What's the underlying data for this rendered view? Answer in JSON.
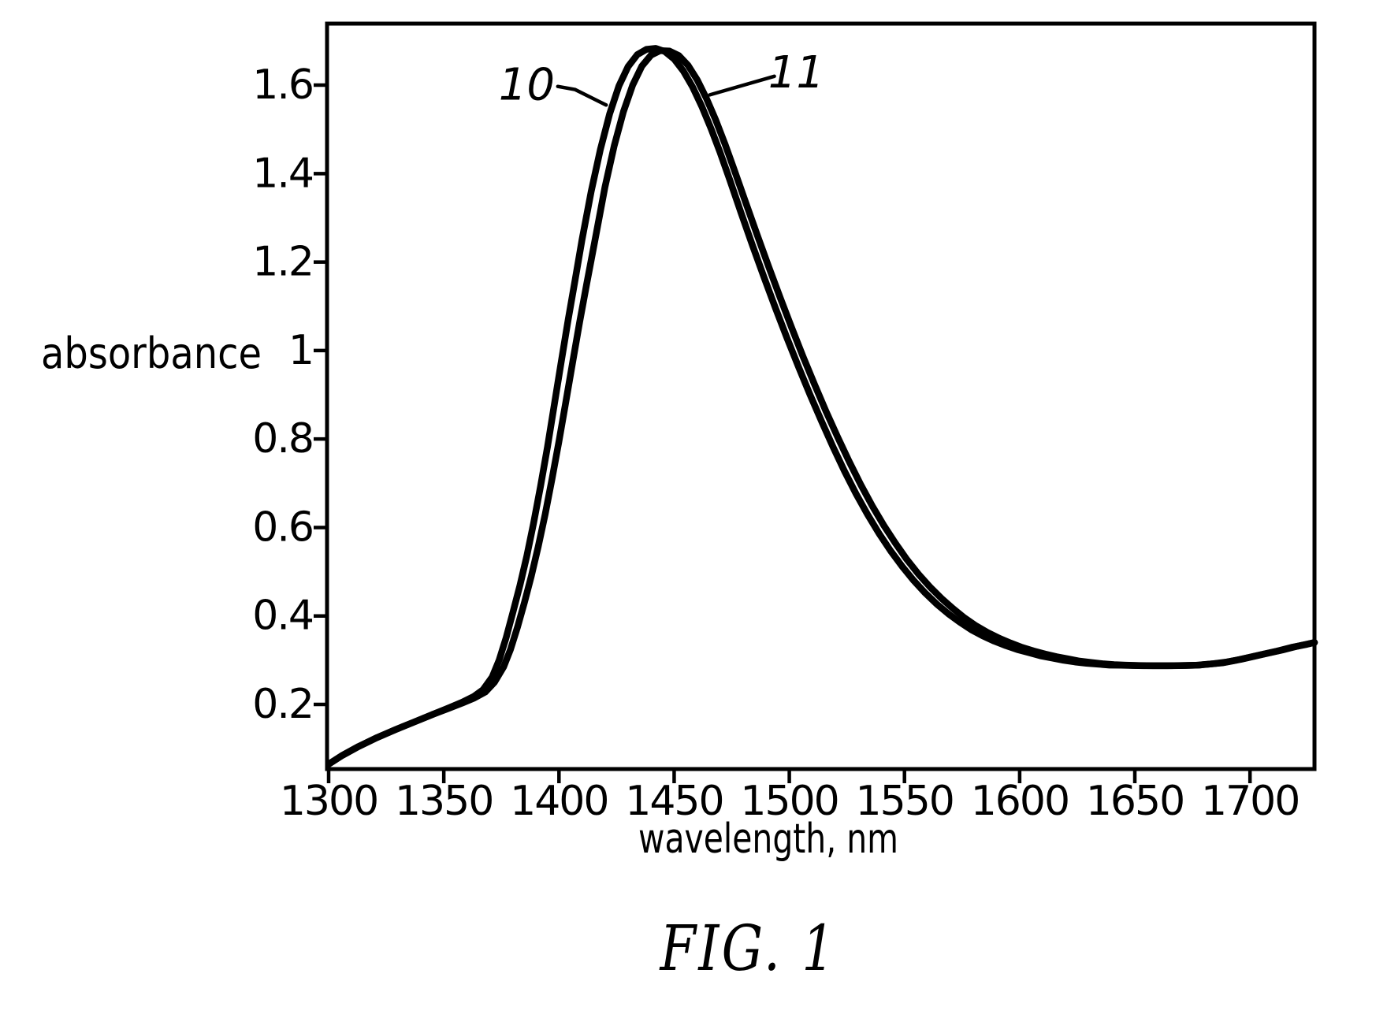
{
  "figure": {
    "caption": "FIG. 1",
    "background": "#ffffff",
    "ink": "#000000"
  },
  "chart_data": {
    "type": "line",
    "title": "",
    "xlabel": "wavelength, nm",
    "ylabel": "absorbance",
    "xlim": [
      1300,
      1728
    ],
    "ylim": [
      0.054,
      1.739
    ],
    "grid": false,
    "line_color": "#000000",
    "x_ticks": [
      {
        "value": 1300,
        "label": "1300"
      },
      {
        "value": 1350,
        "label": "1350"
      },
      {
        "value": 1400,
        "label": "1400"
      },
      {
        "value": 1450,
        "label": "1450"
      },
      {
        "value": 1500,
        "label": "1500"
      },
      {
        "value": 1550,
        "label": "1550"
      },
      {
        "value": 1600,
        "label": "1600"
      },
      {
        "value": 1650,
        "label": "1650"
      },
      {
        "value": 1700,
        "label": "1700"
      }
    ],
    "y_ticks": [
      {
        "value": 0.2,
        "label": "0.2"
      },
      {
        "value": 0.4,
        "label": "0.4"
      },
      {
        "value": 0.6,
        "label": "0.6"
      },
      {
        "value": 0.8,
        "label": "0.8"
      },
      {
        "value": 1.0,
        "label": "1"
      },
      {
        "value": 1.2,
        "label": "1.2"
      },
      {
        "value": 1.4,
        "label": "1.4"
      },
      {
        "value": 1.6,
        "label": "1.6"
      }
    ],
    "series": [
      {
        "name": "10",
        "points": [
          [
            1300,
            0.065
          ],
          [
            1306,
            0.085
          ],
          [
            1313,
            0.105
          ],
          [
            1321,
            0.125
          ],
          [
            1329,
            0.143
          ],
          [
            1337,
            0.16
          ],
          [
            1345,
            0.177
          ],
          [
            1352,
            0.192
          ],
          [
            1358,
            0.205
          ],
          [
            1363,
            0.218
          ],
          [
            1367,
            0.233
          ],
          [
            1371,
            0.262
          ],
          [
            1374,
            0.3
          ],
          [
            1377,
            0.35
          ],
          [
            1380,
            0.408
          ],
          [
            1383,
            0.468
          ],
          [
            1386,
            0.535
          ],
          [
            1389,
            0.61
          ],
          [
            1392,
            0.693
          ],
          [
            1395,
            0.782
          ],
          [
            1398,
            0.878
          ],
          [
            1401,
            0.975
          ],
          [
            1404,
            1.07
          ],
          [
            1407,
            1.16
          ],
          [
            1410,
            1.25
          ],
          [
            1414,
            1.36
          ],
          [
            1418,
            1.455
          ],
          [
            1422,
            1.535
          ],
          [
            1426,
            1.598
          ],
          [
            1430,
            1.642
          ],
          [
            1434,
            1.669
          ],
          [
            1438,
            1.681
          ],
          [
            1442,
            1.683
          ],
          [
            1446,
            1.676
          ],
          [
            1450,
            1.659
          ],
          [
            1454,
            1.632
          ],
          [
            1458,
            1.596
          ],
          [
            1462,
            1.552
          ],
          [
            1466,
            1.502
          ],
          [
            1470,
            1.447
          ],
          [
            1474,
            1.388
          ],
          [
            1479,
            1.312
          ],
          [
            1484,
            1.238
          ],
          [
            1489,
            1.166
          ],
          [
            1494,
            1.096
          ],
          [
            1499,
            1.028
          ],
          [
            1504,
            0.963
          ],
          [
            1509,
            0.9
          ],
          [
            1514,
            0.84
          ],
          [
            1519,
            0.782
          ],
          [
            1524,
            0.727
          ],
          [
            1529,
            0.676
          ],
          [
            1534,
            0.629
          ],
          [
            1539,
            0.586
          ],
          [
            1544,
            0.547
          ],
          [
            1549,
            0.512
          ],
          [
            1554,
            0.48
          ],
          [
            1559,
            0.452
          ],
          [
            1564,
            0.427
          ],
          [
            1569,
            0.405
          ],
          [
            1574,
            0.386
          ],
          [
            1579,
            0.369
          ],
          [
            1584,
            0.355
          ],
          [
            1589,
            0.343
          ],
          [
            1594,
            0.333
          ],
          [
            1599,
            0.324
          ],
          [
            1604,
            0.317
          ],
          [
            1609,
            0.31
          ],
          [
            1614,
            0.305
          ],
          [
            1619,
            0.3
          ],
          [
            1624,
            0.296
          ],
          [
            1629,
            0.293
          ],
          [
            1634,
            0.291
          ],
          [
            1639,
            0.289
          ],
          [
            1644,
            0.2885
          ],
          [
            1649,
            0.288
          ],
          [
            1654,
            0.2875
          ],
          [
            1660,
            0.2875
          ],
          [
            1666,
            0.2875
          ],
          [
            1672,
            0.288
          ],
          [
            1678,
            0.289
          ],
          [
            1684,
            0.292
          ],
          [
            1690,
            0.296
          ],
          [
            1696,
            0.302
          ],
          [
            1702,
            0.309
          ],
          [
            1708,
            0.316
          ],
          [
            1714,
            0.323
          ],
          [
            1720,
            0.331
          ],
          [
            1728,
            0.34
          ]
        ]
      },
      {
        "name": "11",
        "points": [
          [
            1300,
            0.065
          ],
          [
            1306,
            0.085
          ],
          [
            1313,
            0.105
          ],
          [
            1321,
            0.125
          ],
          [
            1329,
            0.143
          ],
          [
            1337,
            0.16
          ],
          [
            1345,
            0.177
          ],
          [
            1352,
            0.191
          ],
          [
            1358,
            0.203
          ],
          [
            1363,
            0.214
          ],
          [
            1368,
            0.228
          ],
          [
            1372,
            0.25
          ],
          [
            1376,
            0.285
          ],
          [
            1379,
            0.325
          ],
          [
            1382,
            0.375
          ],
          [
            1385,
            0.43
          ],
          [
            1388,
            0.49
          ],
          [
            1391,
            0.557
          ],
          [
            1394,
            0.63
          ],
          [
            1397,
            0.71
          ],
          [
            1400,
            0.795
          ],
          [
            1403,
            0.885
          ],
          [
            1406,
            0.975
          ],
          [
            1409,
            1.065
          ],
          [
            1412,
            1.15
          ],
          [
            1416,
            1.26
          ],
          [
            1420,
            1.37
          ],
          [
            1424,
            1.463
          ],
          [
            1428,
            1.54
          ],
          [
            1432,
            1.6
          ],
          [
            1436,
            1.643
          ],
          [
            1440,
            1.668
          ],
          [
            1444,
            1.678
          ],
          [
            1448,
            1.677
          ],
          [
            1452,
            1.667
          ],
          [
            1456,
            1.645
          ],
          [
            1460,
            1.612
          ],
          [
            1464,
            1.57
          ],
          [
            1468,
            1.522
          ],
          [
            1472,
            1.468
          ],
          [
            1476,
            1.41
          ],
          [
            1481,
            1.336
          ],
          [
            1486,
            1.262
          ],
          [
            1491,
            1.19
          ],
          [
            1496,
            1.12
          ],
          [
            1501,
            1.052
          ],
          [
            1506,
            0.986
          ],
          [
            1511,
            0.923
          ],
          [
            1516,
            0.862
          ],
          [
            1521,
            0.804
          ],
          [
            1526,
            0.749
          ],
          [
            1531,
            0.697
          ],
          [
            1536,
            0.649
          ],
          [
            1541,
            0.605
          ],
          [
            1546,
            0.565
          ],
          [
            1551,
            0.528
          ],
          [
            1556,
            0.495
          ],
          [
            1561,
            0.466
          ],
          [
            1566,
            0.44
          ],
          [
            1571,
            0.417
          ],
          [
            1576,
            0.396
          ],
          [
            1581,
            0.378
          ],
          [
            1586,
            0.363
          ],
          [
            1591,
            0.35
          ],
          [
            1596,
            0.339
          ],
          [
            1601,
            0.329
          ],
          [
            1606,
            0.321
          ],
          [
            1611,
            0.314
          ],
          [
            1616,
            0.308
          ],
          [
            1621,
            0.303
          ],
          [
            1626,
            0.298
          ],
          [
            1631,
            0.295
          ],
          [
            1636,
            0.292
          ],
          [
            1641,
            0.29
          ],
          [
            1646,
            0.289
          ],
          [
            1652,
            0.288
          ],
          [
            1658,
            0.2875
          ],
          [
            1664,
            0.2875
          ],
          [
            1670,
            0.288
          ],
          [
            1676,
            0.2885
          ],
          [
            1682,
            0.291
          ],
          [
            1688,
            0.294
          ],
          [
            1694,
            0.3
          ],
          [
            1700,
            0.307
          ],
          [
            1706,
            0.314
          ],
          [
            1712,
            0.321
          ],
          [
            1718,
            0.329
          ],
          [
            1724,
            0.335
          ],
          [
            1728,
            0.34
          ]
        ]
      }
    ],
    "annotations": [
      {
        "label": "10",
        "label_x": 1386,
        "label_y": 1.603,
        "leader": [
          [
            1399.5,
            1.597
          ],
          [
            1407,
            1.59
          ],
          [
            1420.5,
            1.555
          ]
        ]
      },
      {
        "label": "11",
        "label_x": 1503,
        "label_y": 1.63,
        "leader": [
          [
            1493.5,
            1.62
          ],
          [
            1465.5,
            1.578
          ]
        ]
      }
    ]
  }
}
